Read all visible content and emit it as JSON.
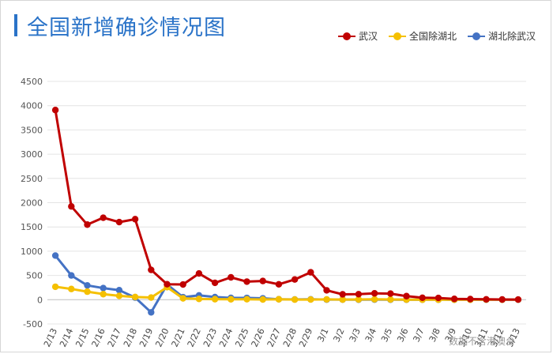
{
  "title": "全国新增确诊情况图",
  "footnote": "数据不含港澳台",
  "chart_data": {
    "type": "line",
    "title": "全国新增确诊情况图",
    "xlabel": "",
    "ylabel": "",
    "ylim": [
      -500,
      4500
    ],
    "yticks": [
      -500,
      0,
      500,
      1000,
      1500,
      2000,
      2500,
      3000,
      3500,
      4000,
      4500
    ],
    "grid": true,
    "legend_position": "top-right",
    "categories": [
      "2/13",
      "2/14",
      "2/15",
      "2/16",
      "2/17",
      "2/18",
      "2/19",
      "2/20",
      "2/21",
      "2/22",
      "2/23",
      "2/24",
      "2/25",
      "2/26",
      "2/27",
      "2/28",
      "2/29",
      "3/1",
      "3/2",
      "3/3",
      "3/4",
      "3/5",
      "3/6",
      "3/7",
      "3/8",
      "3/9",
      "3/10",
      "3/11",
      "3/12",
      "3/13"
    ],
    "series": [
      {
        "name": "武汉",
        "color": "#c00000",
        "values": [
          3910,
          1923,
          1548,
          1690,
          1600,
          1660,
          615,
          319,
          314,
          541,
          348,
          461,
          373,
          386,
          317,
          417,
          565,
          193,
          111,
          114,
          131,
          126,
          74,
          41,
          36,
          17,
          13,
          8,
          5,
          4
        ]
      },
      {
        "name": "全国除湖北",
        "color": "#f5c000",
        "values": [
          267,
          221,
          166,
          115,
          79,
          56,
          45,
          258,
          28,
          16,
          11,
          9,
          10,
          5,
          9,
          3,
          4,
          6,
          3,
          5,
          8,
          5,
          2,
          1,
          0,
          1,
          0,
          2,
          1,
          2
        ]
      },
      {
        "name": "湖北除武汉",
        "color": "#4472c4",
        "values": [
          910,
          500,
          295,
          240,
          197,
          44,
          -260,
          312,
          52,
          89,
          55,
          38,
          37,
          29,
          10,
          6,
          8,
          3,
          3,
          1,
          3,
          0,
          0,
          0,
          0,
          0,
          0,
          0,
          0,
          0
        ]
      }
    ]
  }
}
